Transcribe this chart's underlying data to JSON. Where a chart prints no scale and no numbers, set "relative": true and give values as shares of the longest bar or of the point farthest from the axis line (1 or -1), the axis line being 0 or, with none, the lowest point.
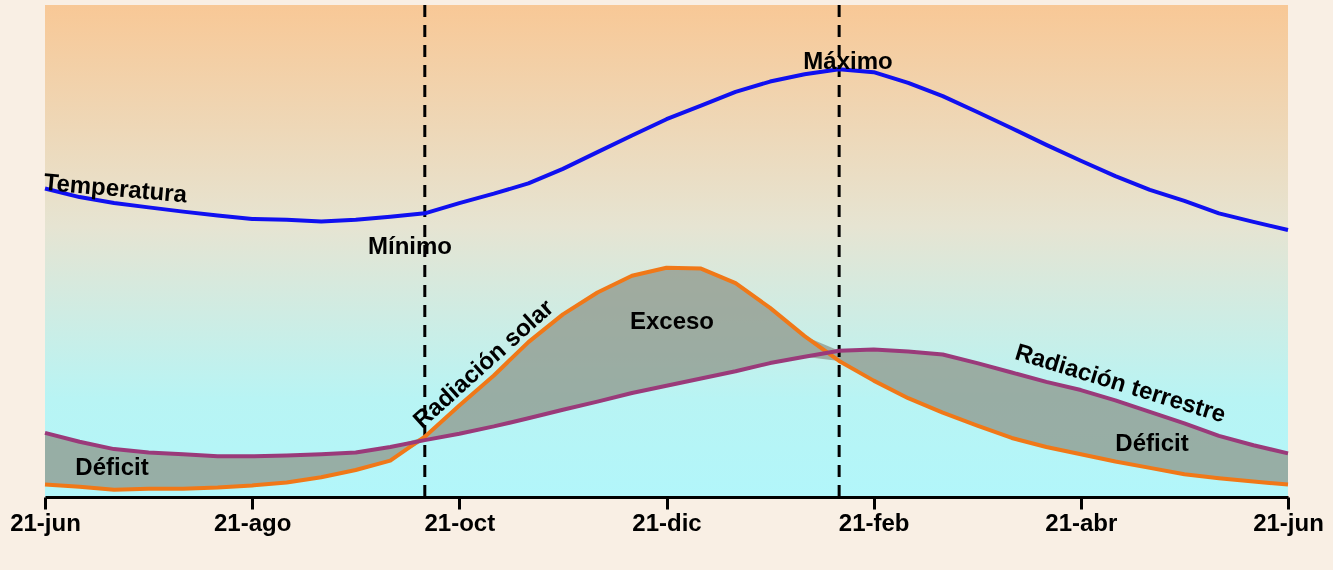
{
  "chart_data": {
    "type": "line",
    "relative": true,
    "categories": [
      "21-jun",
      null,
      null,
      null,
      null,
      null,
      "21-ago",
      null,
      null,
      null,
      null,
      null,
      "21-oct",
      null,
      null,
      null,
      null,
      null,
      "21-dic",
      null,
      null,
      null,
      null,
      null,
      "21-feb",
      null,
      null,
      null,
      null,
      null,
      "21-abr",
      null,
      null,
      null,
      null,
      null,
      "21-jun"
    ],
    "series": [
      {
        "name": "Temperatura",
        "color": "#1010f0",
        "values": [
          0.721,
          0.701,
          0.687,
          0.677,
          0.667,
          0.658,
          0.65,
          0.648,
          0.644,
          0.648,
          0.655,
          0.663,
          0.687,
          0.709,
          0.733,
          0.767,
          0.806,
          0.845,
          0.883,
          0.915,
          0.947,
          0.971,
          0.988,
          1,
          0.993,
          0.968,
          0.937,
          0.9,
          0.862,
          0.823,
          0.786,
          0.75,
          0.718,
          0.692,
          0.663,
          0.643,
          0.624
        ]
      },
      {
        "name": "Radiación solar",
        "color": "#f07818",
        "values": [
          0.029,
          0.024,
          0.017,
          0.019,
          0.019,
          0.022,
          0.027,
          0.034,
          0.046,
          0.063,
          0.085,
          0.141,
          0.214,
          0.284,
          0.362,
          0.427,
          0.478,
          0.517,
          0.536,
          0.534,
          0.5,
          0.442,
          0.376,
          0.318,
          0.272,
          0.231,
          0.197,
          0.167,
          0.138,
          0.117,
          0.1,
          0.083,
          0.068,
          0.053,
          0.044,
          0.036,
          0.029
        ],
        "lower": [
          0.029,
          0.024,
          0.017,
          0.019,
          0.019,
          0.022,
          0.027,
          0.034,
          0.046,
          0.063,
          0.085,
          0.133,
          0.148,
          0.165,
          0.184,
          0.204,
          0.223,
          0.243,
          0.26,
          0.277,
          0.294,
          0.313,
          0.328,
          0.318,
          0.272,
          0.231,
          0.197,
          0.167,
          0.138,
          0.117,
          0.1,
          0.083,
          0.068,
          0.053,
          0.044,
          0.036,
          0.029
        ],
        "upper": [
          0.15,
          0.129,
          0.112,
          0.104,
          0.1,
          0.095,
          0.095,
          0.097,
          0.1,
          0.104,
          0.117,
          0.141,
          0.214,
          0.284,
          0.362,
          0.427,
          0.478,
          0.517,
          0.536,
          0.534,
          0.5,
          0.442,
          0.376,
          0.342,
          0.345,
          0.34,
          0.333,
          0.313,
          0.291,
          0.269,
          0.25,
          0.226,
          0.199,
          0.172,
          0.143,
          0.121,
          0.102
        ]
      },
      {
        "name": "Radiación terrestre",
        "color": "#9a3a7a",
        "values": [
          0.15,
          0.129,
          0.112,
          0.104,
          0.1,
          0.095,
          0.095,
          0.097,
          0.1,
          0.104,
          0.117,
          0.133,
          0.148,
          0.165,
          0.184,
          0.204,
          0.223,
          0.243,
          0.26,
          0.277,
          0.294,
          0.313,
          0.328,
          0.342,
          0.345,
          0.34,
          0.333,
          0.313,
          0.291,
          0.269,
          0.25,
          0.226,
          0.199,
          0.172,
          0.143,
          0.121,
          0.102
        ]
      }
    ],
    "annotations": [
      "Máximo",
      "Mínimo",
      "Exceso",
      "Déficit",
      "Déficit"
    ]
  }
}
